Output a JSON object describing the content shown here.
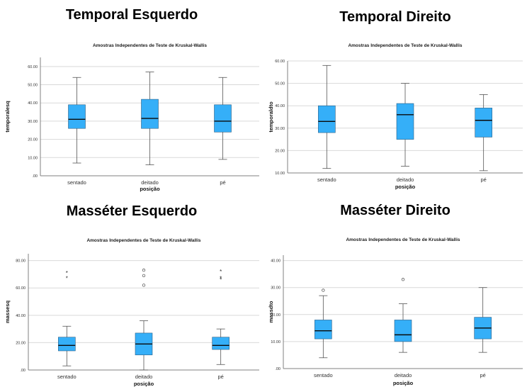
{
  "colors": {
    "box_fill": "#35aff8",
    "box_stroke": "#2a5f86",
    "grid": "#d9d9d9",
    "axis": "#808080"
  },
  "panels": [
    {
      "heading": "Temporal Esquerdo",
      "chart_data": {
        "type": "boxplot",
        "title": "Amostras Independentes de Teste de Kruskal-Wallis",
        "xlabel": "posição",
        "ylabel": "temporalesq",
        "categories": [
          "sentado",
          "deitado",
          "pé"
        ],
        "ylim": [
          0,
          65
        ],
        "yticks": [
          0,
          10,
          20,
          30,
          40,
          50,
          60
        ],
        "ytick_labels": [
          ".00",
          "10.00",
          "20.00",
          "30.00",
          "40.00",
          "50.00",
          "60.00"
        ],
        "grid": true,
        "boxes": [
          {
            "min": 7,
            "q1": 26,
            "median": 31,
            "q3": 39,
            "max": 54,
            "outliers": [],
            "extremes": []
          },
          {
            "min": 6,
            "q1": 26,
            "median": 31.5,
            "q3": 42,
            "max": 57,
            "outliers": [],
            "extremes": []
          },
          {
            "min": 9,
            "q1": 24,
            "median": 30,
            "q3": 39,
            "max": 54,
            "outliers": [],
            "extremes": []
          }
        ]
      }
    },
    {
      "heading": "Temporal Direito",
      "chart_data": {
        "type": "boxplot",
        "title": "Amostras Independentes de Teste de Kruskal-Wallis",
        "xlabel": "posição",
        "ylabel": "temporaldto",
        "categories": [
          "sentado",
          "deitado",
          "pé"
        ],
        "ylim": [
          10,
          60
        ],
        "yticks": [
          10,
          20,
          30,
          40,
          50,
          60
        ],
        "ytick_labels": [
          "10.00",
          "20.00",
          "30.00",
          "40.00",
          "50.00",
          "60.00"
        ],
        "grid": true,
        "boxes": [
          {
            "min": 12,
            "q1": 28,
            "median": 33,
            "q3": 40,
            "max": 58,
            "outliers": [],
            "extremes": []
          },
          {
            "min": 13,
            "q1": 25,
            "median": 36,
            "q3": 41,
            "max": 50,
            "outliers": [],
            "extremes": []
          },
          {
            "min": 11,
            "q1": 26,
            "median": 33.5,
            "q3": 39,
            "max": 45,
            "outliers": [],
            "extremes": []
          }
        ]
      }
    },
    {
      "heading": "Masséter Esquerdo",
      "chart_data": {
        "type": "boxplot",
        "title": "Amostras Independentes de Teste de Kruskal-Wallis",
        "xlabel": "posição",
        "ylabel": "massesq",
        "categories": [
          "sentado",
          "deitado",
          "pé"
        ],
        "ylim": [
          0,
          85
        ],
        "yticks": [
          0,
          20,
          40,
          60,
          80
        ],
        "ytick_labels": [
          ".00",
          "20.00",
          "40.00",
          "60.00",
          "80.00"
        ],
        "grid": true,
        "boxes": [
          {
            "min": 3,
            "q1": 14,
            "median": 18,
            "q3": 24,
            "max": 32,
            "outliers": [],
            "extremes": [
              71,
              67
            ]
          },
          {
            "min": 0,
            "q1": 11,
            "median": 19,
            "q3": 27,
            "max": 36,
            "outliers": [
              73,
              69,
              62
            ],
            "extremes": []
          },
          {
            "min": 4,
            "q1": 15,
            "median": 18,
            "q3": 24,
            "max": 30,
            "outliers": [],
            "extremes": [
              72,
              67,
              66
            ]
          }
        ]
      }
    },
    {
      "heading": "Masséter Direito",
      "chart_data": {
        "type": "boxplot",
        "title": "Amostras Independentes de Teste de Kruskal-Wallis",
        "xlabel": "posição",
        "ylabel": "massdto",
        "categories": [
          "sentado",
          "deitado",
          "pé"
        ],
        "ylim": [
          0,
          42
        ],
        "yticks": [
          0,
          10,
          20,
          30,
          40
        ],
        "ytick_labels": [
          ".00",
          "10.00",
          "20.00",
          "30.00",
          "40.00"
        ],
        "grid": true,
        "boxes": [
          {
            "min": 4,
            "q1": 11,
            "median": 14,
            "q3": 18,
            "max": 27,
            "outliers": [
              29
            ],
            "extremes": []
          },
          {
            "min": 6,
            "q1": 10,
            "median": 12.5,
            "q3": 18,
            "max": 24,
            "outliers": [
              33
            ],
            "extremes": []
          },
          {
            "min": 6,
            "q1": 11,
            "median": 15,
            "q3": 19,
            "max": 30,
            "outliers": [],
            "extremes": []
          }
        ]
      }
    }
  ]
}
